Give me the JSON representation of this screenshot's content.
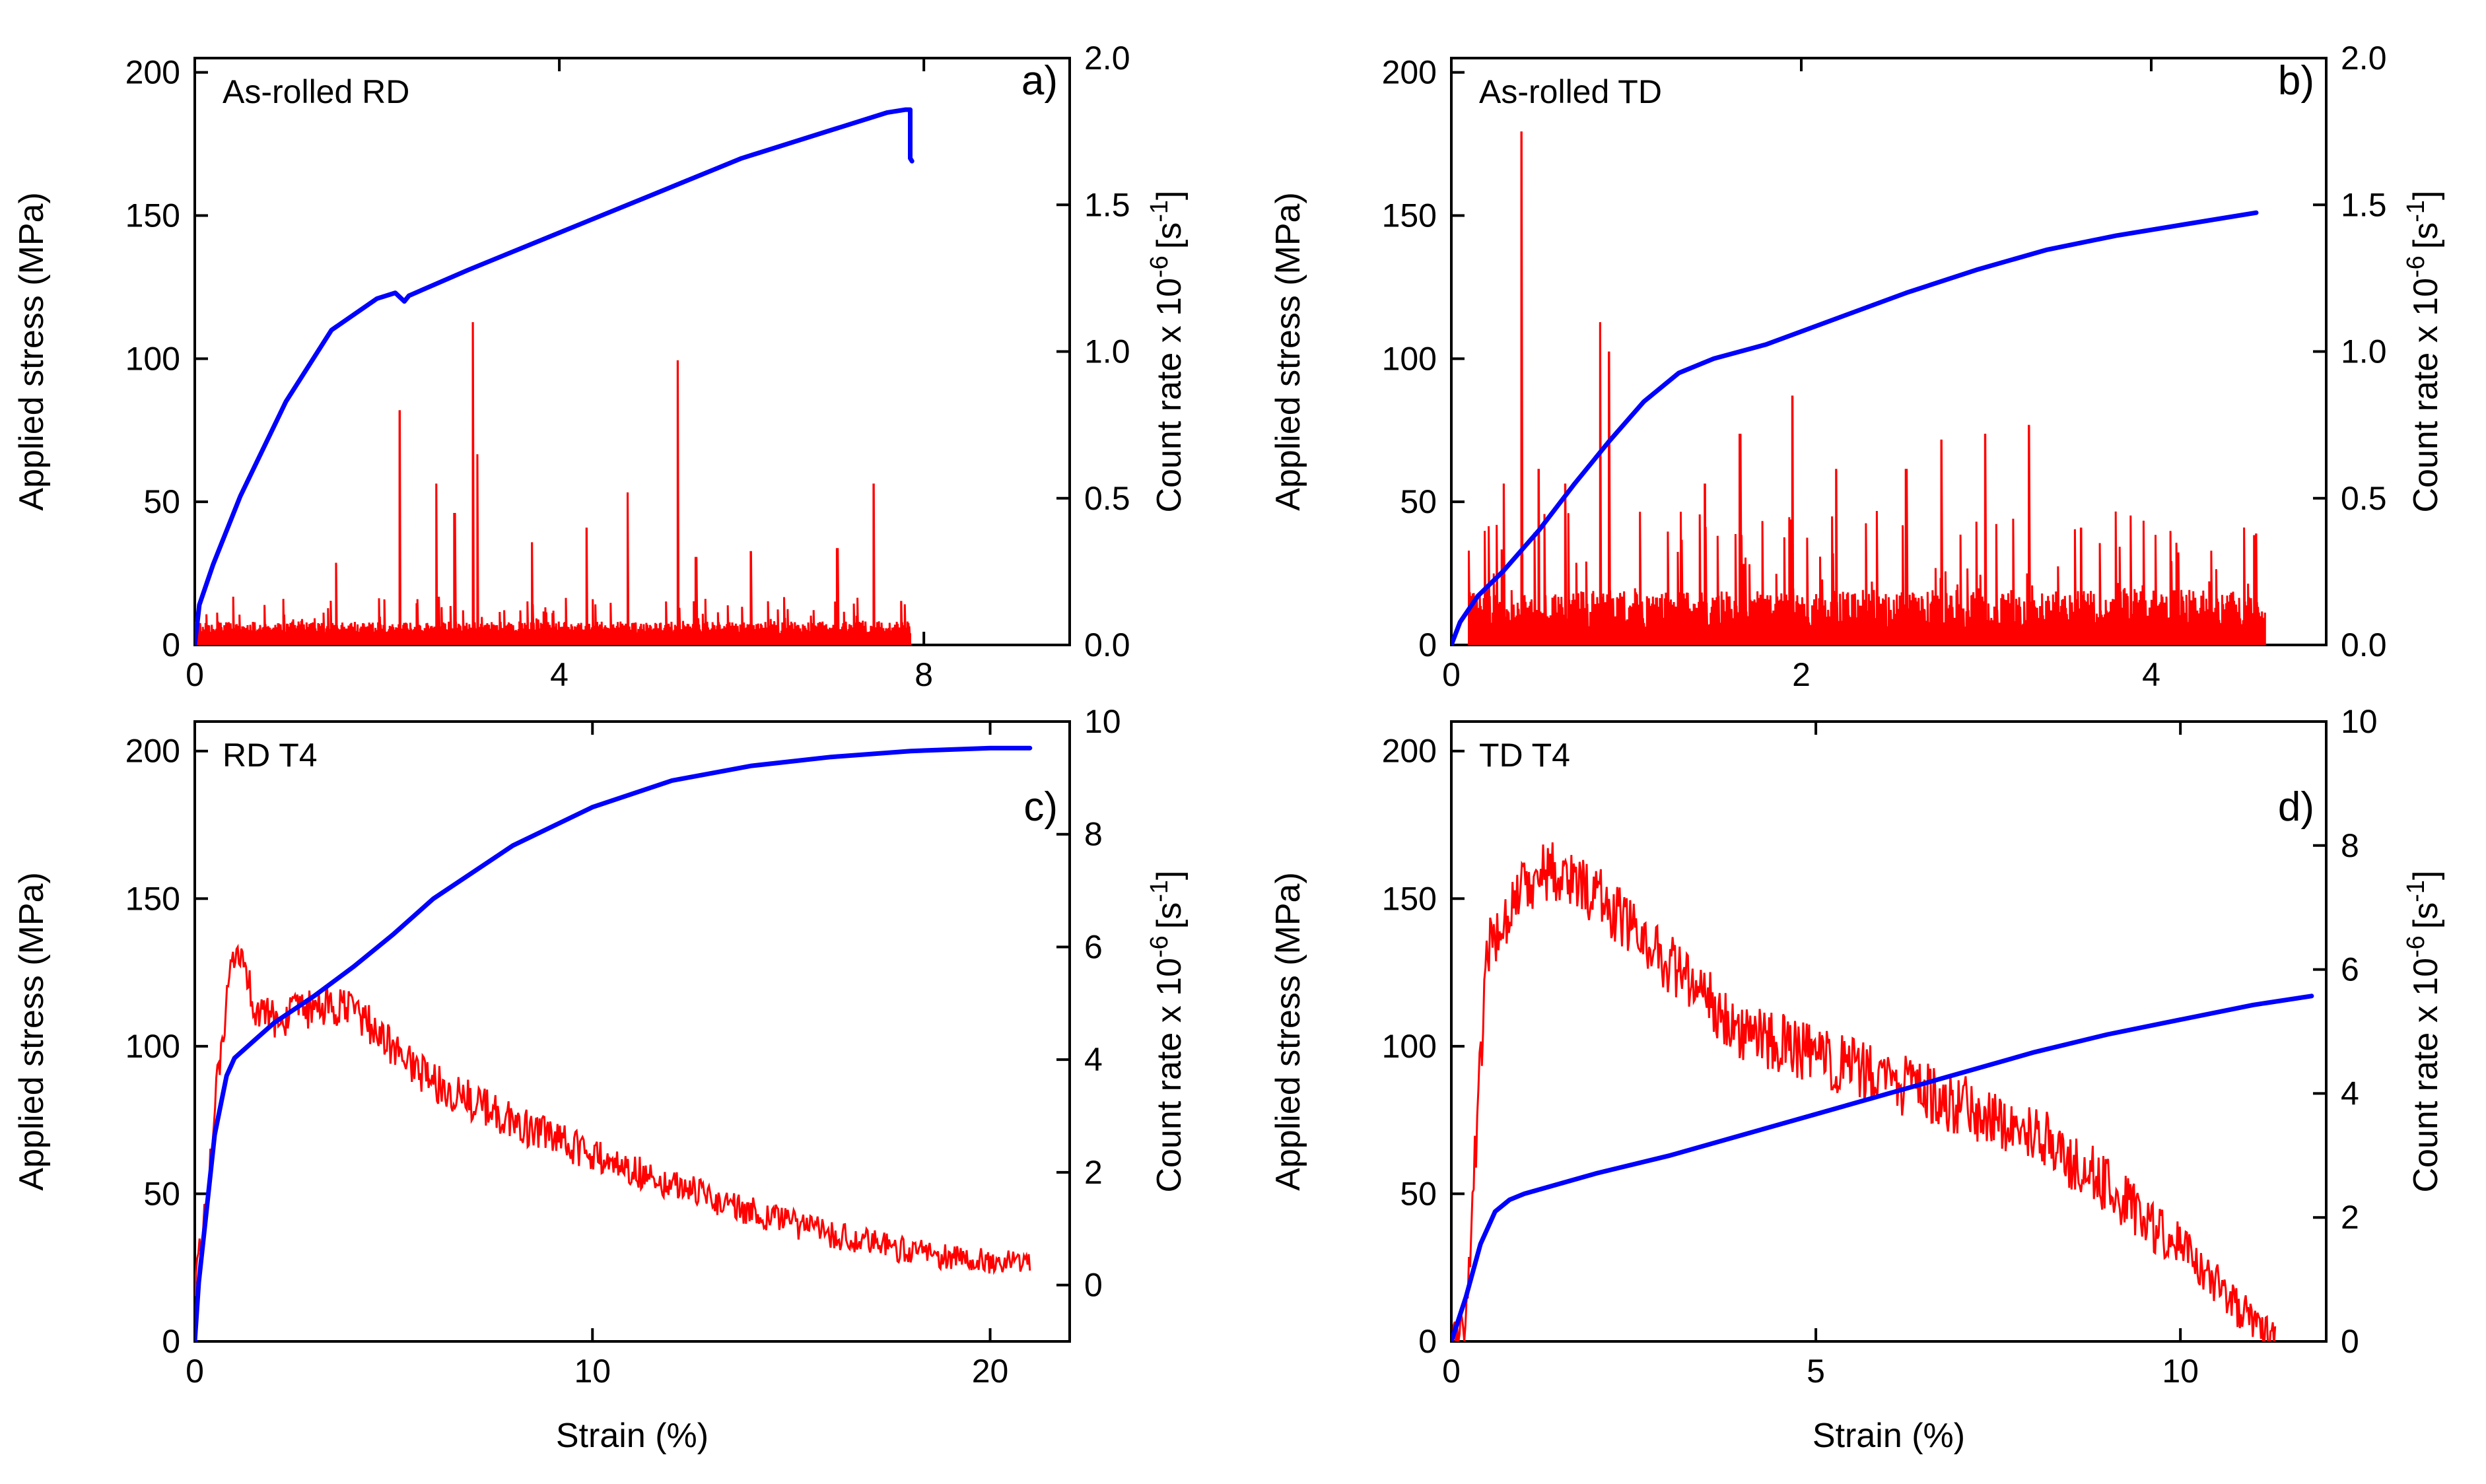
{
  "figure": {
    "xlabel": "Strain (%)",
    "colors": {
      "stress": "#0000ff",
      "count_rate": "#ff0000",
      "axes": "#000000",
      "background": "#ffffff"
    }
  },
  "chart_data": [
    {
      "type": "line",
      "panel": "a)",
      "sample": "As-rolled RD",
      "xlabel": "Strain (%)",
      "xlim": [
        0,
        9.6
      ],
      "xticks": [
        0,
        4,
        8
      ],
      "ylabel": "Applied stress (MPa)",
      "ylim": [
        0,
        205
      ],
      "yticks": [
        0,
        50,
        100,
        150,
        200
      ],
      "y2label_main": "Count rate x 10",
      "y2label_exp": "-6",
      "y2label_unit": "[s",
      "y2label_unit_exp": "-1",
      "y2label_close": "]",
      "y2lim": [
        0,
        2.0
      ],
      "y2ticks": [
        "0.0",
        "0.5",
        "1.0",
        "1.5",
        "2.0"
      ],
      "series": [
        {
          "name": "Applied stress",
          "axis": "left",
          "x": [
            0,
            0.05,
            0.2,
            0.5,
            1.0,
            1.5,
            2.0,
            2.2,
            2.3,
            2.35,
            3.0,
            4.0,
            5.0,
            6.0,
            7.0,
            7.6,
            7.8,
            7.85,
            7.85,
            7.87
          ],
          "y": [
            0,
            14,
            28,
            52,
            85,
            110,
            121,
            123,
            120,
            122,
            131,
            144,
            157,
            170,
            180,
            186,
            187,
            187,
            170,
            169
          ]
        },
        {
          "name": "Count rate",
          "axis": "right",
          "x_range": [
            0,
            7.85
          ],
          "baseline": 0.04,
          "noise": 0.05,
          "peaks": [
            [
              1.55,
              0.28
            ],
            [
              2.25,
              0.8
            ],
            [
              2.65,
              0.55
            ],
            [
              2.85,
              0.45
            ],
            [
              3.05,
              1.1
            ],
            [
              3.1,
              0.65
            ],
            [
              3.7,
              0.35
            ],
            [
              4.3,
              0.4
            ],
            [
              4.75,
              0.52
            ],
            [
              5.3,
              0.97
            ],
            [
              5.5,
              0.3
            ],
            [
              6.1,
              0.32
            ],
            [
              7.05,
              0.33
            ],
            [
              7.45,
              0.55
            ],
            [
              7.75,
              0.15
            ]
          ]
        }
      ]
    },
    {
      "type": "line",
      "panel": "b)",
      "sample": "As-rolled TD",
      "xlabel": "Strain (%)",
      "xlim": [
        0,
        5.0
      ],
      "xticks": [
        0,
        2,
        4
      ],
      "ylabel": "Applied stress (MPa)",
      "ylim": [
        0,
        205
      ],
      "yticks": [
        0,
        50,
        100,
        150,
        200
      ],
      "y2label_main": "Count rate x 10",
      "y2label_exp": "-6",
      "y2label_unit": "[s",
      "y2label_unit_exp": "-1",
      "y2label_close": "]",
      "y2lim": [
        0,
        2.0
      ],
      "y2ticks": [
        "0.0",
        "0.5",
        "1.0",
        "1.5",
        "2.0"
      ],
      "series": [
        {
          "name": "Applied stress",
          "axis": "left",
          "x": [
            0,
            0.05,
            0.15,
            0.3,
            0.5,
            0.7,
            0.9,
            1.1,
            1.3,
            1.5,
            1.8,
            2.2,
            2.6,
            3.0,
            3.4,
            3.8,
            4.2,
            4.6
          ],
          "y": [
            0,
            8,
            17,
            26,
            40,
            56,
            71,
            85,
            95,
            100,
            105,
            114,
            123,
            131,
            138,
            143,
            147,
            151
          ]
        },
        {
          "name": "Count rate",
          "axis": "right",
          "x_range": [
            0.1,
            4.65
          ],
          "baseline": 0.06,
          "noise": 0.16,
          "peaks": [
            [
              0.3,
              0.55
            ],
            [
              0.4,
              1.75
            ],
            [
              0.5,
              0.6
            ],
            [
              0.65,
              0.55
            ],
            [
              0.85,
              1.1
            ],
            [
              0.9,
              1.0
            ],
            [
              1.45,
              0.55
            ],
            [
              1.65,
              0.72
            ],
            [
              1.95,
              0.85
            ],
            [
              2.2,
              0.6
            ],
            [
              2.6,
              0.6
            ],
            [
              2.8,
              0.7
            ],
            [
              3.05,
              0.72
            ],
            [
              3.3,
              0.75
            ],
            [
              3.6,
              0.4
            ],
            [
              4.6,
              0.38
            ]
          ]
        }
      ]
    },
    {
      "type": "line",
      "panel": "c)",
      "sample": "RD T4",
      "xlabel": "Strain (%)",
      "xlim": [
        0,
        22
      ],
      "xticks": [
        0,
        10,
        20
      ],
      "ylabel": "Applied stress (MPa)",
      "ylim": [
        0,
        210
      ],
      "yticks": [
        0,
        50,
        100,
        150,
        200
      ],
      "y2label_main": "Count rate x 10",
      "y2label_exp": "-6",
      "y2label_unit": "[s",
      "y2label_unit_exp": "-1",
      "y2label_close": "]",
      "y2lim": [
        -1,
        10
      ],
      "y2ticks": [
        "0",
        "2",
        "4",
        "6",
        "8",
        "10"
      ],
      "series": [
        {
          "name": "Applied stress",
          "axis": "left",
          "x": [
            0,
            0.1,
            0.3,
            0.5,
            0.8,
            1.0,
            1.5,
            2.0,
            3.0,
            4.0,
            5.0,
            6.0,
            8.0,
            10.0,
            12.0,
            14.0,
            16.0,
            18.0,
            20.0,
            21.0
          ],
          "y": [
            0,
            20,
            45,
            70,
            90,
            96,
            102,
            108,
            117,
            127,
            138,
            150,
            168,
            181,
            190,
            195,
            198,
            200,
            201,
            201
          ]
        },
        {
          "name": "Count rate",
          "axis": "right",
          "x": [
            0,
            0.3,
            0.6,
            0.9,
            1.2,
            1.5,
            2.0,
            3.0,
            4.0,
            5.0,
            6.0,
            8.0,
            10.0,
            12.0,
            14.0,
            16.0,
            18.0,
            20.0,
            21.0
          ],
          "y": [
            0.0,
            1.5,
            3.8,
            5.5,
            5.9,
            4.9,
            4.7,
            4.9,
            4.9,
            4.2,
            3.6,
            2.9,
            2.3,
            1.8,
            1.3,
            0.9,
            0.6,
            0.4,
            0.4
          ],
          "noise": 0.35
        }
      ]
    },
    {
      "type": "line",
      "panel": "d)",
      "sample": "TD T4",
      "xlabel": "Strain (%)",
      "xlim": [
        0,
        12
      ],
      "xticks": [
        0,
        5,
        10
      ],
      "ylabel": "Applied stress (MPa)",
      "ylim": [
        0,
        210
      ],
      "yticks": [
        0,
        50,
        100,
        150,
        200
      ],
      "y2label_main": "Count rate x 10",
      "y2label_exp": "-6",
      "y2label_unit": "[s",
      "y2label_unit_exp": "-1",
      "y2label_close": "]",
      "y2lim": [
        0,
        10
      ],
      "y2ticks": [
        "0",
        "2",
        "4",
        "6",
        "8",
        "10"
      ],
      "series": [
        {
          "name": "Applied stress",
          "axis": "left",
          "x": [
            0,
            0.2,
            0.4,
            0.6,
            0.8,
            1.0,
            2.0,
            3.0,
            4.0,
            5.0,
            6.0,
            7.0,
            8.0,
            9.0,
            10.0,
            11.0,
            11.8
          ],
          "y": [
            0,
            15,
            33,
            44,
            48,
            50,
            57,
            63,
            70,
            77,
            84,
            91,
            98,
            104,
            109,
            114,
            117
          ]
        },
        {
          "name": "Count rate",
          "axis": "right",
          "x": [
            0,
            0.2,
            0.35,
            0.5,
            0.8,
            1.0,
            1.3,
            1.6,
            2.0,
            3.0,
            4.0,
            5.0,
            6.0,
            7.0,
            8.0,
            9.0,
            10.0,
            10.5,
            11.0,
            11.3
          ],
          "y": [
            0,
            0.3,
            3.5,
            6.3,
            7.0,
            7.4,
            7.6,
            7.5,
            7.2,
            6.1,
            5.0,
            4.6,
            4.2,
            3.8,
            3.4,
            2.5,
            1.5,
            0.9,
            0.3,
            0.0
          ],
          "noise": 0.5
        }
      ]
    }
  ]
}
